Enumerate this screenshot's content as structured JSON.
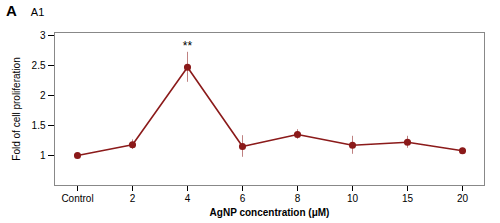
{
  "chart_data": {
    "type": "line",
    "title": "A",
    "subtitle": "A1",
    "categories": [
      "Control",
      "2",
      "4",
      "6",
      "8",
      "10",
      "15",
      "20"
    ],
    "values": [
      1.0,
      1.18,
      2.47,
      1.15,
      1.35,
      1.17,
      1.22,
      1.08
    ],
    "errors": [
      0.03,
      0.08,
      0.25,
      0.18,
      0.08,
      0.15,
      0.1,
      0.04
    ],
    "color": "#8B1A1A",
    "marker": "circle",
    "line_style": "solid",
    "xlabel": "AgNP concentration (μM)",
    "ylabel": "Fold of cell proliferation",
    "ylim": [
      0.5,
      3.05
    ],
    "yticks": [
      1,
      1.5,
      2,
      2.5,
      3
    ],
    "annotations": [
      {
        "text": "**",
        "x": "4",
        "y": 2.76
      }
    ],
    "grid": false
  }
}
